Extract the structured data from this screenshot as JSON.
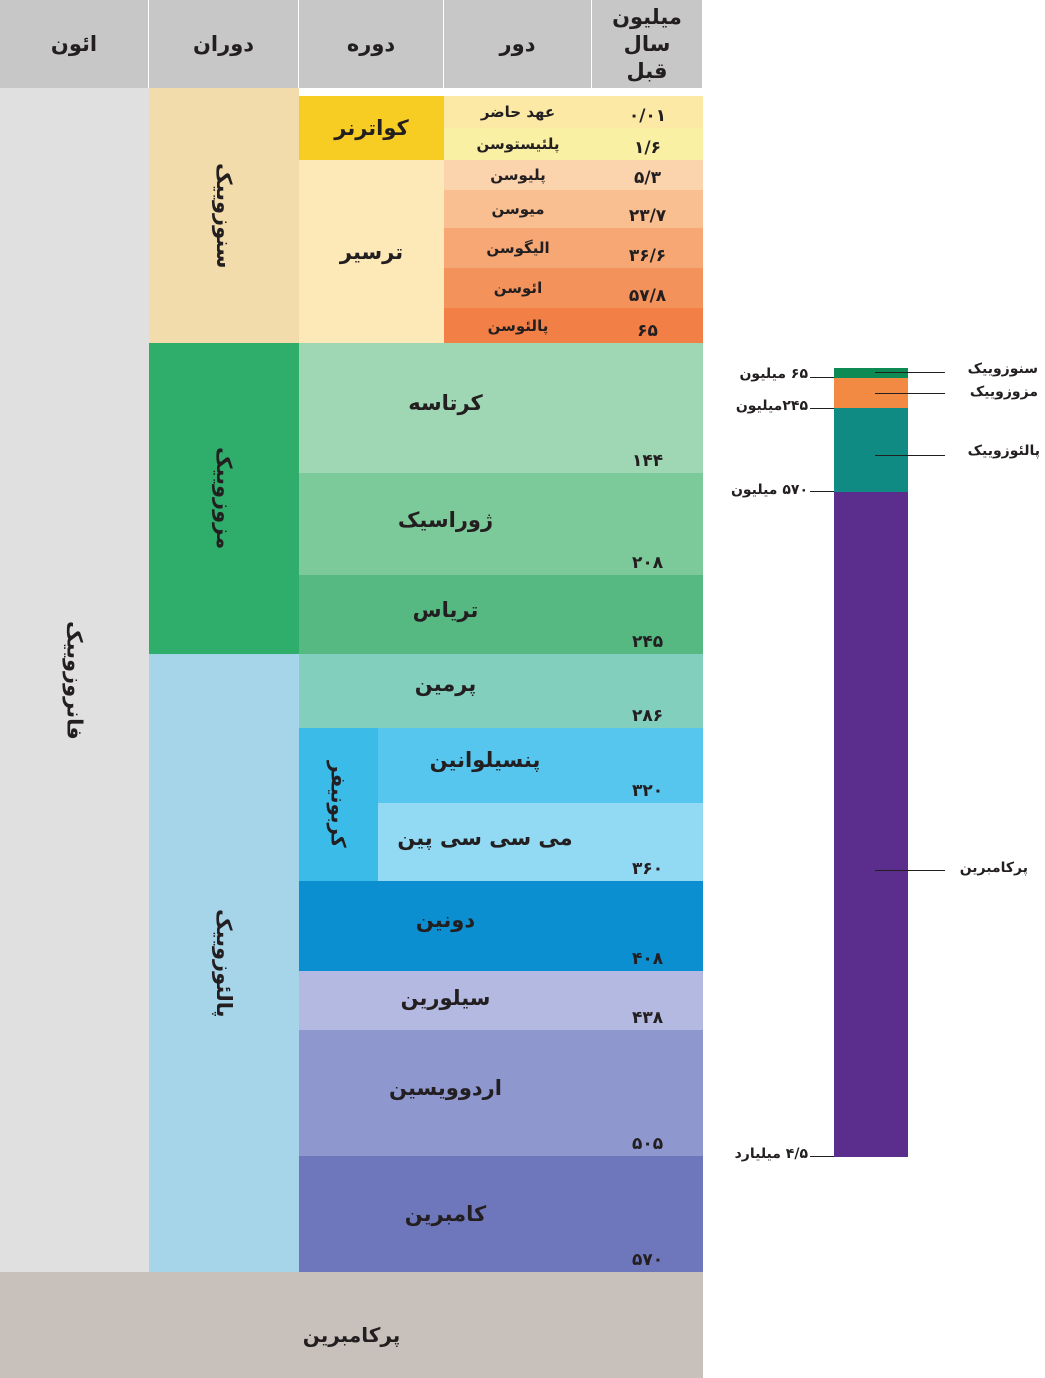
{
  "headers": {
    "eon": "ائون",
    "era": "دوران",
    "period": "دوره",
    "epoch": "دور",
    "mya": "میلیون سال قبل"
  },
  "eons": {
    "phanerozoic": "فانروزوییک",
    "precambrian": "پرکامبرین"
  },
  "eras": {
    "cenozoic": "سنوزوییک",
    "mesozoic": "مزوزوییک",
    "paleozoic": "پالئوزوییک"
  },
  "periods": {
    "quaternary": "کواترنر",
    "tertiary": "ترسیر",
    "cretaceous": "کرتاسه",
    "jurassic": "ژوراسیک",
    "triassic": "تریاس",
    "permian": "پرمین",
    "carboniferous": "کربونیفر",
    "pennsylvanian": "پنسیلوانین",
    "mississippian": "می سی سی پین",
    "devonian": "دونین",
    "silurian": "سیلورین",
    "ordovician": "اردوویسین",
    "cambrian": "کامبرین"
  },
  "epochs": [
    {
      "name": "عهد حاضر",
      "age": "۰/۰۱"
    },
    {
      "name": "پلئیستوسن",
      "age": "۱/۶"
    },
    {
      "name": "پلیوسن",
      "age": "۵/۳"
    },
    {
      "name": "میوسن",
      "age": "۲۳/۷"
    },
    {
      "name": "الیگوسن",
      "age": "۳۶/۶"
    },
    {
      "name": "ائوسن",
      "age": "۵۷/۸"
    },
    {
      "name": "پالئوسن",
      "age": "۶۵"
    }
  ],
  "period_ages": {
    "cretaceous": "۱۴۴",
    "jurassic": "۲۰۸",
    "triassic": "۲۴۵",
    "permian": "۲۸۶",
    "pennsylvanian": "۳۲۰",
    "mississippian": "۳۶۰",
    "devonian": "۴۰۸",
    "silurian": "۴۳۸",
    "ordovician": "۵۰۵",
    "cambrian": "۵۷۰"
  },
  "side_bar": {
    "left_labels": {
      "cenozoic_end": "۶۵ میلیون",
      "mesozoic_end": "۲۴۵میلیون",
      "paleozoic_end": "۵۷۰ میلیون",
      "precambrian_end": "۴/۵ میلیارد"
    },
    "right_labels": {
      "cenozoic": "سنوزوییک",
      "mesozoic": "مزوزوییک",
      "paleozoic": "پالئوزوییک",
      "precambrian": "پرکامبرین"
    },
    "colors": {
      "cenozoic": "#0e8a55",
      "mesozoic": "#f28a44",
      "paleozoic": "#0f8b84",
      "precambrian": "#5b2e8d"
    }
  },
  "colors": {
    "header": "#c8c7c8",
    "phanerozoic": "#e0e0e1",
    "precambrian": "#c8c1bb",
    "cenozoic": "#f3dcab",
    "mesozoic": "#2fae6b",
    "paleozoic": "#a6d5ea",
    "quaternary": "#f7cd23",
    "tertiary": "#fde8b8"
  }
}
